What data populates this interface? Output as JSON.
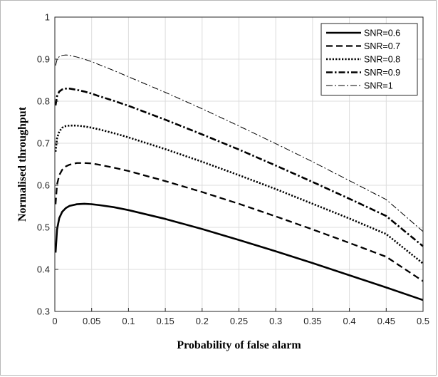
{
  "chart_data": {
    "type": "line",
    "title": "",
    "xlabel": "Probability of false alarm",
    "ylabel": "Normalised throughput",
    "xlim": [
      0,
      0.5
    ],
    "ylim": [
      0.3,
      1
    ],
    "xticks": [
      "0",
      "0.05",
      "0.1",
      "0.15",
      "0.2",
      "0.25",
      "0.3",
      "0.35",
      "0.4",
      "0.45",
      "0.5"
    ],
    "yticks": [
      "0.3",
      "0.4",
      "0.5",
      "0.6",
      "0.7",
      "0.8",
      "0.9",
      "1"
    ],
    "grid": true,
    "legend_position": "top-right",
    "series": [
      {
        "name": "SNR=0.6",
        "style": "solid",
        "x": [
          0.001,
          0.003,
          0.006,
          0.01,
          0.015,
          0.02,
          0.03,
          0.04,
          0.05,
          0.06,
          0.08,
          0.1,
          0.15,
          0.2,
          0.25,
          0.3,
          0.35,
          0.4,
          0.45,
          0.5
        ],
        "y": [
          0.44,
          0.495,
          0.522,
          0.537,
          0.546,
          0.551,
          0.555,
          0.556,
          0.555,
          0.553,
          0.548,
          0.541,
          0.52,
          0.496,
          0.47,
          0.443,
          0.415,
          0.386,
          0.357,
          0.327
        ]
      },
      {
        "name": "SNR=0.7",
        "style": "dashed",
        "x": [
          0.001,
          0.003,
          0.006,
          0.01,
          0.015,
          0.02,
          0.03,
          0.04,
          0.05,
          0.06,
          0.08,
          0.1,
          0.15,
          0.2,
          0.25,
          0.3,
          0.35,
          0.4,
          0.45,
          0.5
        ],
        "y": [
          0.555,
          0.602,
          0.624,
          0.637,
          0.645,
          0.649,
          0.653,
          0.653,
          0.652,
          0.649,
          0.642,
          0.634,
          0.61,
          0.584,
          0.556,
          0.526,
          0.495,
          0.463,
          0.43,
          0.372
        ]
      },
      {
        "name": "SNR=0.8",
        "style": "dotted",
        "x": [
          0.001,
          0.003,
          0.006,
          0.01,
          0.015,
          0.02,
          0.03,
          0.04,
          0.05,
          0.06,
          0.08,
          0.1,
          0.15,
          0.2,
          0.25,
          0.3,
          0.35,
          0.4,
          0.45,
          0.5
        ],
        "y": [
          0.68,
          0.712,
          0.728,
          0.737,
          0.741,
          0.742,
          0.742,
          0.74,
          0.737,
          0.733,
          0.724,
          0.714,
          0.686,
          0.656,
          0.624,
          0.591,
          0.556,
          0.521,
          0.484,
          0.414
        ]
      },
      {
        "name": "SNR=0.9",
        "style": "dashdot-bold",
        "x": [
          0.001,
          0.003,
          0.006,
          0.01,
          0.015,
          0.02,
          0.03,
          0.04,
          0.05,
          0.06,
          0.08,
          0.1,
          0.15,
          0.2,
          0.25,
          0.3,
          0.35,
          0.4,
          0.45,
          0.5
        ],
        "y": [
          0.79,
          0.812,
          0.823,
          0.828,
          0.83,
          0.83,
          0.827,
          0.823,
          0.818,
          0.812,
          0.801,
          0.789,
          0.756,
          0.721,
          0.685,
          0.647,
          0.608,
          0.568,
          0.527,
          0.455
        ]
      },
      {
        "name": "SNR=1",
        "style": "dashdot-thin",
        "x": [
          0.001,
          0.003,
          0.006,
          0.01,
          0.015,
          0.02,
          0.03,
          0.04,
          0.05,
          0.06,
          0.08,
          0.1,
          0.15,
          0.2,
          0.25,
          0.3,
          0.35,
          0.4,
          0.45,
          0.5
        ],
        "y": [
          0.885,
          0.899,
          0.906,
          0.909,
          0.91,
          0.909,
          0.905,
          0.9,
          0.894,
          0.887,
          0.873,
          0.858,
          0.821,
          0.782,
          0.741,
          0.699,
          0.656,
          0.611,
          0.566,
          0.49
        ]
      }
    ]
  }
}
